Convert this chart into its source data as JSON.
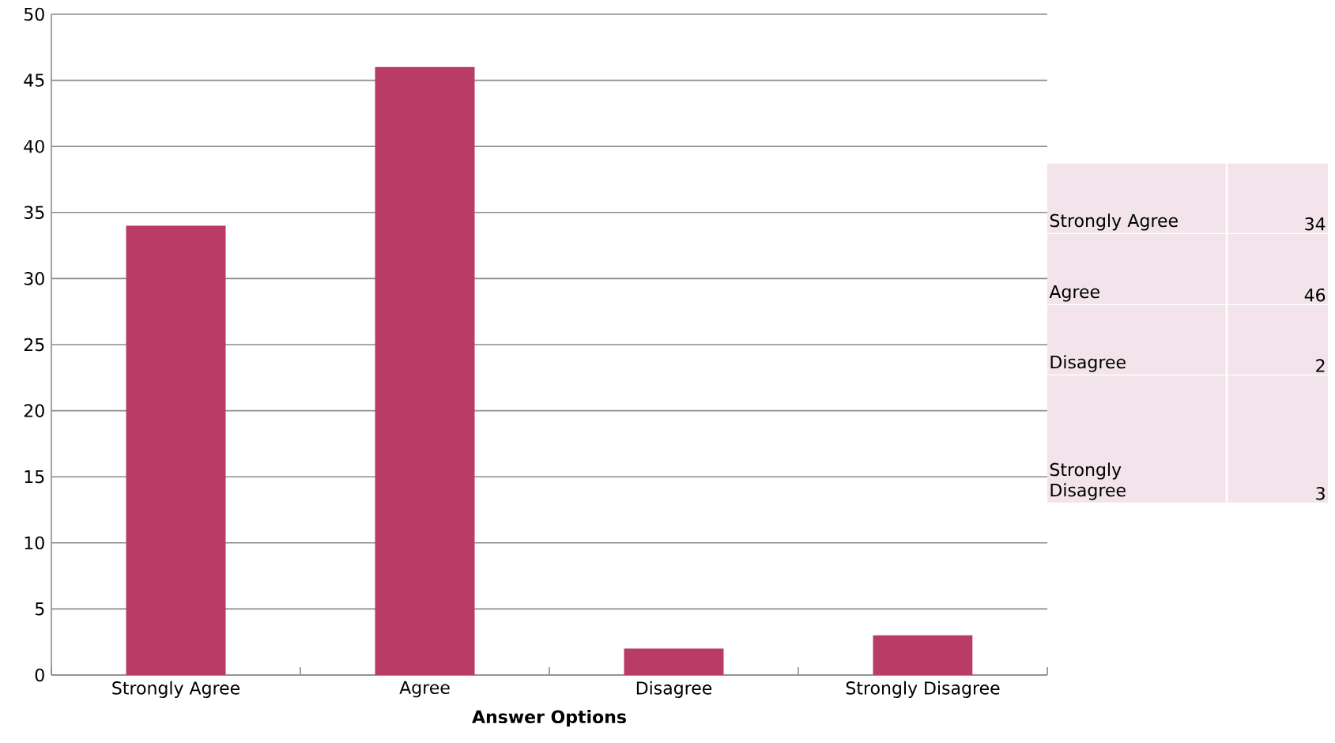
{
  "chart_data": [
    {
      "type": "bar",
      "xlabel": "Answer Options",
      "categories": [
        "Strongly Agree",
        "Agree",
        "Disagree",
        "Strongly Disagree"
      ],
      "values": [
        34,
        46,
        2,
        3
      ],
      "color": "#b83c66",
      "ylim": [
        0,
        50
      ],
      "yticks": [
        0,
        5,
        10,
        15,
        20,
        25,
        30,
        35,
        40,
        45,
        50
      ],
      "grid": "y"
    },
    {
      "type": "other",
      "categories": [
        "Strongly Agree",
        "Agree",
        "Disagree",
        "Strongly Disagree"
      ],
      "values": [
        34,
        46,
        2,
        3
      ],
      "value_labels": [
        "34",
        "46",
        "2",
        "3"
      ],
      "color": "#f2e4ea"
    }
  ]
}
